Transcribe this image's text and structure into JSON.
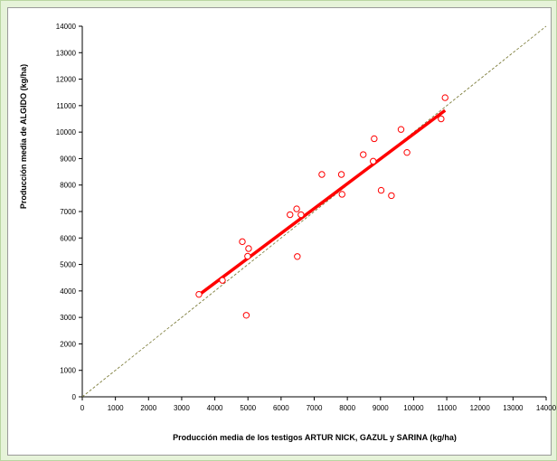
{
  "chart_data": {
    "type": "scatter",
    "title": "",
    "xlabel": "Producción media de los testigos ARTUR NICK, GAZUL y SARINA (kg/ha)",
    "ylabel": "Producción media de ALGIDO (kg/ha)",
    "xlim": [
      0,
      14000
    ],
    "ylim": [
      0,
      14000
    ],
    "xticks": [
      0,
      1000,
      2000,
      3000,
      4000,
      5000,
      6000,
      7000,
      8000,
      9000,
      10000,
      11000,
      12000,
      13000,
      14000
    ],
    "yticks": [
      0,
      1000,
      2000,
      3000,
      4000,
      5000,
      6000,
      7000,
      8000,
      9000,
      10000,
      11000,
      12000,
      13000,
      14000
    ],
    "grid": false,
    "legend": "none",
    "series": [
      {
        "kind": "points",
        "marker": "open-circle",
        "color": "#ff0000",
        "x": [
          3520,
          4230,
          4830,
          4990,
          4950,
          5020,
          6270,
          6470,
          6490,
          6600,
          7230,
          7820,
          7840,
          8480,
          8780,
          8810,
          9020,
          9330,
          9620,
          9800,
          10830,
          10950
        ],
        "y": [
          3870,
          4400,
          5860,
          5310,
          3080,
          5600,
          6880,
          7100,
          5300,
          6880,
          8400,
          8400,
          7650,
          9150,
          8900,
          9750,
          7800,
          7600,
          10100,
          9230,
          10500,
          11300
        ]
      },
      {
        "kind": "regression-line",
        "color": "#ff0000",
        "x": [
          3500,
          10950
        ],
        "y": [
          3830,
          10820
        ]
      },
      {
        "kind": "reference-line",
        "style": "dashed",
        "color": "#808040",
        "x": [
          0,
          14000
        ],
        "y": [
          0,
          14000
        ]
      }
    ]
  }
}
